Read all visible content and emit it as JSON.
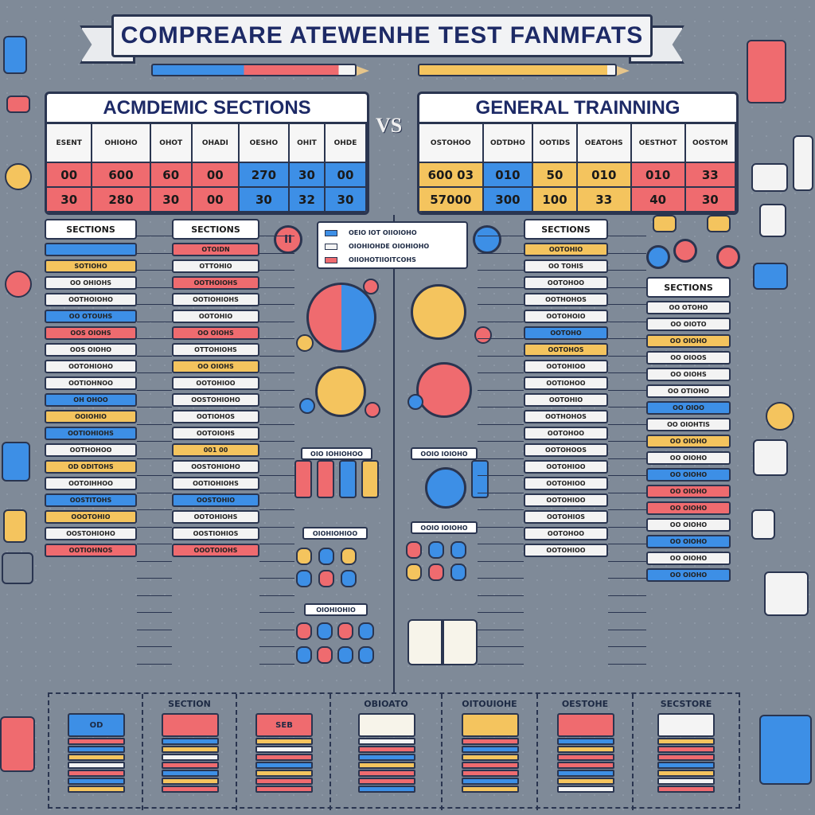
{
  "title": "COMPREARE ATEWENHE TEST FANMFATS",
  "versus": "VS",
  "academic": {
    "header": "ACMDEMIC SECTIONS",
    "columns": [
      "ESENT",
      "OHIOHO",
      "OHOT",
      "OHADI",
      "OESHO",
      "OHIT",
      "OHDE"
    ],
    "rows": [
      {
        "cells": [
          "00",
          "600",
          "60",
          "00",
          "270",
          "30",
          "00"
        ],
        "colors": [
          "red",
          "red",
          "red",
          "red",
          "blue",
          "blue",
          "blue"
        ]
      },
      {
        "cells": [
          "30",
          "280",
          "30",
          "00",
          "30",
          "32",
          "30"
        ],
        "colors": [
          "red",
          "red",
          "red",
          "red",
          "blue",
          "blue",
          "blue"
        ]
      }
    ]
  },
  "general": {
    "header": "GENERAL TRAINNING",
    "columns": [
      "OSTOHOO",
      "ODTDHO",
      "OOTIDS",
      "OEATOHS",
      "OESTHOT",
      "OOSTOM"
    ],
    "rows": [
      {
        "cells": [
          "600 03",
          "010",
          "50",
          "010",
          "010",
          "33"
        ],
        "colors": [
          "yellow",
          "blue",
          "yellow",
          "yellow",
          "red",
          "red"
        ]
      },
      {
        "cells": [
          "57000",
          "300",
          "100",
          "33",
          "40",
          "30"
        ],
        "colors": [
          "yellow",
          "blue",
          "yellow",
          "yellow",
          "red",
          "red"
        ]
      }
    ]
  },
  "columns_left": {
    "col1": {
      "head": "SECTIONS",
      "rows": [
        {
          "text": "",
          "color": "blue"
        },
        {
          "text": "SOTIOHO",
          "color": "yellow"
        },
        {
          "text": "OO OHIOHS",
          "color": "white"
        },
        {
          "text": "OOTHOIOHO",
          "color": "white"
        },
        {
          "text": "OO OTOUHS",
          "color": "blue"
        },
        {
          "text": "OOS OIOHS",
          "color": "red"
        },
        {
          "text": "OOS OIOHO",
          "color": "white"
        },
        {
          "text": "OOTOHIOHO",
          "color": "white"
        },
        {
          "text": "OOTIOHNOO",
          "color": "white"
        },
        {
          "text": "OH OHOO",
          "color": "blue"
        },
        {
          "text": "OOIOHIO",
          "color": "yellow"
        },
        {
          "text": "OOTIOHIOHS",
          "color": "blue"
        },
        {
          "text": "OOTHOHOO",
          "color": "white"
        },
        {
          "text": "OD ODITOHS",
          "color": "yellow"
        },
        {
          "text": "OOTOIHHOO",
          "color": "white"
        },
        {
          "text": "OOSTITOHS",
          "color": "blue"
        },
        {
          "text": "OOOTOHIO",
          "color": "yellow"
        },
        {
          "text": "OOSTOHIOHO",
          "color": "white"
        },
        {
          "text": "OOTIOHNOS",
          "color": "red"
        }
      ]
    },
    "col2": {
      "head": "SECTIONS",
      "rows": [
        {
          "text": "OTOIDN",
          "color": "red"
        },
        {
          "text": "OTTOHIO",
          "color": "white"
        },
        {
          "text": "OOTHOIOHS",
          "color": "red"
        },
        {
          "text": "OOTIOHIOHS",
          "color": "white"
        },
        {
          "text": "OOTOHIO",
          "color": "white"
        },
        {
          "text": "OO OIOHS",
          "color": "red"
        },
        {
          "text": "OTTOHIOHS",
          "color": "white"
        },
        {
          "text": "OO OIOHS",
          "color": "yellow"
        },
        {
          "text": "OOTOHIOO",
          "color": "white"
        },
        {
          "text": "OOSTOHIOHO",
          "color": "white"
        },
        {
          "text": "OOTIOHOS",
          "color": "white"
        },
        {
          "text": "OOTOIOHS",
          "color": "white"
        },
        {
          "text": "001 00",
          "color": "yellow"
        },
        {
          "text": "OOSTOHIOHO",
          "color": "white"
        },
        {
          "text": "OOTIOHIOHS",
          "color": "white"
        },
        {
          "text": "OOSTOHIO",
          "color": "blue"
        },
        {
          "text": "OOTOHIOHS",
          "color": "white"
        },
        {
          "text": "OOSTIOHIOS",
          "color": "white"
        },
        {
          "text": "OOOTOIOHS",
          "color": "red"
        }
      ]
    }
  },
  "legend": {
    "items": [
      {
        "label": "OEIO IOT OIIOIOHO",
        "color": "#3d8fe6"
      },
      {
        "label": "OIOHIOHDE OIOHIOHO",
        "color": "#f4f4f4"
      },
      {
        "label": "OIIOHOTIIOITCOHS",
        "color": "#ef6b6f"
      }
    ]
  },
  "pill_label": "II",
  "mini_labels": {
    "left_a": "OIO IOHIOHOO",
    "left_b": "OIOHIOHIOO",
    "left_c": "OIOHIOHIO",
    "right_a": "OOIO IOIOHO",
    "right_b": "OOIO IOIOHO"
  },
  "columns_right": {
    "col3": {
      "head": "SECTIONS",
      "rows": [
        {
          "text": "OOTOHIO",
          "color": "yellow"
        },
        {
          "text": "OO TOHIS",
          "color": "white"
        },
        {
          "text": "OOTOHOO",
          "color": "white"
        },
        {
          "text": "OOTHOHOS",
          "color": "white"
        },
        {
          "text": "OOTOHOIO",
          "color": "white"
        },
        {
          "text": "OOTOHO",
          "color": "blue"
        },
        {
          "text": "OOTOHOS",
          "color": "yellow"
        },
        {
          "text": "OOTOHIOO",
          "color": "white"
        },
        {
          "text": "OOTIOHOO",
          "color": "white"
        },
        {
          "text": "OOTOHIO",
          "color": "white"
        },
        {
          "text": "OOTHOHOS",
          "color": "white"
        },
        {
          "text": "OOTOHOO",
          "color": "white"
        },
        {
          "text": "OOTOHOOS",
          "color": "white"
        },
        {
          "text": "OOTOHIOO",
          "color": "white"
        },
        {
          "text": "OOTOHIOO",
          "color": "white"
        },
        {
          "text": "OOTOHIOO",
          "color": "white"
        },
        {
          "text": "OOTOHIOS",
          "color": "white"
        },
        {
          "text": "OOTOHOO",
          "color": "white"
        },
        {
          "text": "OOTOHIOO",
          "color": "white"
        }
      ]
    },
    "col4": {
      "head": "SECTIONS",
      "rows": [
        {
          "text": "OO OTOHO",
          "color": "white"
        },
        {
          "text": "OO OIOTO",
          "color": "white"
        },
        {
          "text": "OO OIOHO",
          "color": "yellow"
        },
        {
          "text": "OO OIOOS",
          "color": "white"
        },
        {
          "text": "OO OIOHS",
          "color": "white"
        },
        {
          "text": "OO OTIOHO",
          "color": "white"
        },
        {
          "text": "OO OIOO",
          "color": "blue"
        },
        {
          "text": "OO OIOHTIS",
          "color": "white"
        },
        {
          "text": "OO OIOHO",
          "color": "yellow"
        },
        {
          "text": "OO OIOHO",
          "color": "white"
        },
        {
          "text": "OO OIOHO",
          "color": "blue"
        },
        {
          "text": "OO OIOHO",
          "color": "red"
        },
        {
          "text": "OO OIOHO",
          "color": "red"
        },
        {
          "text": "OO OIOHO",
          "color": "white"
        },
        {
          "text": "OO OIOHO",
          "color": "blue"
        },
        {
          "text": "OO OIOHO",
          "color": "white"
        },
        {
          "text": "OO OIOHO",
          "color": "blue"
        }
      ]
    }
  },
  "bottom": {
    "cells": [
      {
        "label": "",
        "cover": "OD",
        "cover_color": "#3d8fe6"
      },
      {
        "label": "SECTION",
        "cover": "",
        "cover_color": "#ef6b6f"
      },
      {
        "label": "",
        "cover": "SEB",
        "cover_color": "#ef6b6f"
      },
      {
        "label": "OBIOATO",
        "cover": "",
        "cover_color": "#f7f4ea"
      },
      {
        "label": "OITOUIOHE",
        "cover": "",
        "cover_color": "#f4c45e"
      },
      {
        "label": "OESTOHE",
        "cover": "",
        "cover_color": "#ef6b6f"
      },
      {
        "label": "SECSTORE",
        "cover": "",
        "cover_color": "#f4f4f4"
      }
    ]
  },
  "colors": {
    "red": "#ef6b6f",
    "blue": "#3d8fe6",
    "yellow": "#f4c45e",
    "white": "#f3f3f3",
    "navy": "#2a3550",
    "background": "#7f8a98"
  }
}
